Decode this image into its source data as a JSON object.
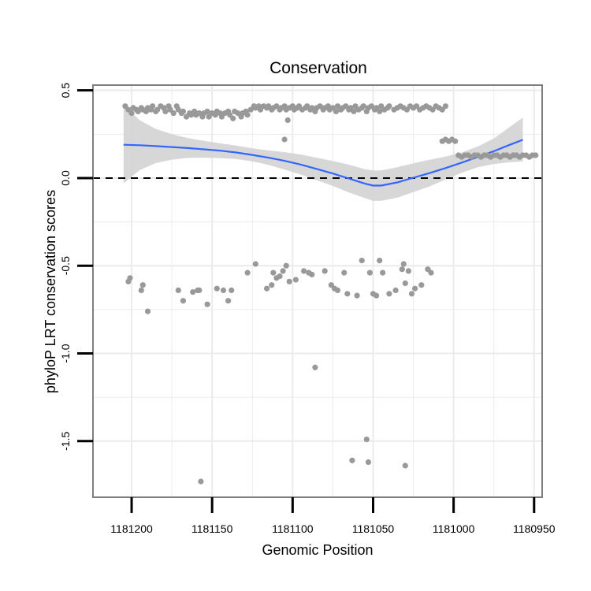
{
  "chart_data": {
    "type": "scatter",
    "title": "Conservation",
    "xlabel": "Genomic Position",
    "ylabel": "phyloP LRT conservation scores",
    "x_reversed": true,
    "xlim": [
      1181224,
      1180945
    ],
    "ylim": [
      -1.82,
      0.53
    ],
    "xticks": [
      1181200,
      1181150,
      1181100,
      1181050,
      1181000,
      1180950
    ],
    "xtick_labels": [
      "1181200",
      "1181150",
      "1181100",
      "1181050",
      "1181000",
      "1180950"
    ],
    "yticks": [
      0.5,
      0.0,
      -0.5,
      -1.0,
      -1.5
    ],
    "ytick_labels": [
      "0.5",
      "0.0",
      "-0.5",
      "-1.0",
      "-1.5"
    ],
    "reference_line": {
      "y": 0.0,
      "style": "dashed"
    },
    "colors": {
      "points": "#999999",
      "smooth": "#3366ff",
      "band": "#d3d3d3",
      "grid": "#ebebeb",
      "frame": "#7f7f7f",
      "refline": "#000000"
    },
    "series": [
      {
        "name": "upper",
        "points": [
          [
            1181204,
            0.41
          ],
          [
            1181202,
            0.39
          ],
          [
            1181200,
            0.37
          ],
          [
            1181199,
            0.4
          ],
          [
            1181197,
            0.39
          ],
          [
            1181196,
            0.38
          ],
          [
            1181194,
            0.4
          ],
          [
            1181193,
            0.39
          ],
          [
            1181191,
            0.38
          ],
          [
            1181190,
            0.4
          ],
          [
            1181188,
            0.39
          ],
          [
            1181187,
            0.41
          ],
          [
            1181185,
            0.38
          ],
          [
            1181184,
            0.39
          ],
          [
            1181182,
            0.41
          ],
          [
            1181180,
            0.4
          ],
          [
            1181179,
            0.38
          ],
          [
            1181177,
            0.41
          ],
          [
            1181176,
            0.39
          ],
          [
            1181174,
            0.37
          ],
          [
            1181172,
            0.41
          ],
          [
            1181171,
            0.39
          ],
          [
            1181169,
            0.37
          ],
          [
            1181168,
            0.38
          ],
          [
            1181166,
            0.35
          ],
          [
            1181164,
            0.37
          ],
          [
            1181163,
            0.36
          ],
          [
            1181161,
            0.38
          ],
          [
            1181160,
            0.36
          ],
          [
            1181158,
            0.37
          ],
          [
            1181156,
            0.35
          ],
          [
            1181155,
            0.37
          ],
          [
            1181153,
            0.38
          ],
          [
            1181152,
            0.35
          ],
          [
            1181150,
            0.37
          ],
          [
            1181148,
            0.36
          ],
          [
            1181147,
            0.38
          ],
          [
            1181145,
            0.37
          ],
          [
            1181144,
            0.35
          ],
          [
            1181142,
            0.37
          ],
          [
            1181140,
            0.38
          ],
          [
            1181139,
            0.36
          ],
          [
            1181137,
            0.34
          ],
          [
            1181136,
            0.38
          ],
          [
            1181134,
            0.37
          ],
          [
            1181132,
            0.35
          ],
          [
            1181131,
            0.37
          ],
          [
            1181129,
            0.38
          ],
          [
            1181128,
            0.36
          ],
          [
            1181126,
            0.39
          ],
          [
            1181124,
            0.41
          ],
          [
            1181123,
            0.4
          ],
          [
            1181121,
            0.41
          ],
          [
            1181120,
            0.39
          ],
          [
            1181118,
            0.41
          ],
          [
            1181116,
            0.4
          ],
          [
            1181115,
            0.41
          ],
          [
            1181113,
            0.39
          ],
          [
            1181112,
            0.4
          ],
          [
            1181110,
            0.41
          ],
          [
            1181108,
            0.39
          ],
          [
            1181107,
            0.4
          ],
          [
            1181105,
            0.41
          ],
          [
            1181104,
            0.39
          ],
          [
            1181102,
            0.4
          ],
          [
            1181100,
            0.41
          ],
          [
            1181099,
            0.39
          ],
          [
            1181097,
            0.4
          ],
          [
            1181096,
            0.41
          ],
          [
            1181094,
            0.39
          ],
          [
            1181092,
            0.4
          ],
          [
            1181091,
            0.41
          ],
          [
            1181089,
            0.39
          ],
          [
            1181088,
            0.4
          ],
          [
            1181086,
            0.38
          ],
          [
            1181085,
            0.4
          ],
          [
            1181083,
            0.41
          ],
          [
            1181081,
            0.39
          ],
          [
            1181080,
            0.4
          ],
          [
            1181078,
            0.41
          ],
          [
            1181077,
            0.39
          ],
          [
            1181075,
            0.4
          ],
          [
            1181073,
            0.38
          ],
          [
            1181072,
            0.41
          ],
          [
            1181070,
            0.39
          ],
          [
            1181069,
            0.4
          ],
          [
            1181067,
            0.41
          ],
          [
            1181065,
            0.39
          ],
          [
            1181064,
            0.4
          ],
          [
            1181062,
            0.38
          ],
          [
            1181061,
            0.41
          ],
          [
            1181059,
            0.39
          ],
          [
            1181057,
            0.4
          ],
          [
            1181056,
            0.41
          ],
          [
            1181054,
            0.38
          ],
          [
            1181053,
            0.4
          ],
          [
            1181051,
            0.41
          ],
          [
            1181049,
            0.39
          ],
          [
            1181048,
            0.4
          ],
          [
            1181046,
            0.38
          ],
          [
            1181045,
            0.41
          ],
          [
            1181043,
            0.39
          ],
          [
            1181041,
            0.4
          ],
          [
            1181040,
            0.41
          ],
          [
            1181037,
            0.39
          ],
          [
            1181035,
            0.4
          ],
          [
            1181033,
            0.41
          ],
          [
            1181031,
            0.4
          ],
          [
            1181029,
            0.39
          ],
          [
            1181027,
            0.41
          ],
          [
            1181025,
            0.4
          ],
          [
            1181023,
            0.41
          ],
          [
            1181021,
            0.39
          ],
          [
            1181019,
            0.4
          ],
          [
            1181017,
            0.41
          ],
          [
            1181015,
            0.4
          ],
          [
            1181013,
            0.39
          ],
          [
            1181011,
            0.41
          ],
          [
            1181009,
            0.4
          ],
          [
            1181007,
            0.39
          ],
          [
            1181005,
            0.41
          ],
          [
            1181103,
            0.33
          ],
          [
            1181105,
            0.22
          ],
          [
            1181007,
            0.21
          ],
          [
            1181005,
            0.22
          ],
          [
            1181003,
            0.21
          ],
          [
            1181001,
            0.22
          ],
          [
            1180999,
            0.21
          ],
          [
            1180997,
            0.13
          ],
          [
            1180995,
            0.12
          ],
          [
            1180993,
            0.13
          ],
          [
            1180991,
            0.13
          ],
          [
            1180989,
            0.12
          ],
          [
            1180987,
            0.13
          ],
          [
            1180985,
            0.13
          ],
          [
            1180983,
            0.12
          ],
          [
            1180981,
            0.13
          ],
          [
            1180979,
            0.13
          ],
          [
            1180977,
            0.12
          ],
          [
            1180975,
            0.13
          ],
          [
            1180973,
            0.13
          ],
          [
            1180971,
            0.12
          ],
          [
            1180969,
            0.13
          ],
          [
            1180967,
            0.13
          ],
          [
            1180965,
            0.12
          ],
          [
            1180963,
            0.13
          ],
          [
            1180961,
            0.13
          ],
          [
            1180959,
            0.12
          ],
          [
            1180957,
            0.13
          ],
          [
            1180955,
            0.13
          ],
          [
            1180953,
            0.12
          ],
          [
            1180951,
            0.13
          ],
          [
            1180949,
            0.13
          ]
        ]
      },
      {
        "name": "lower",
        "points": [
          [
            1181202,
            -0.59
          ],
          [
            1181201,
            -0.57
          ],
          [
            1181194,
            -0.64
          ],
          [
            1181193,
            -0.61
          ],
          [
            1181190,
            -0.76
          ],
          [
            1181171,
            -0.64
          ],
          [
            1181168,
            -0.7
          ],
          [
            1181162,
            -0.65
          ],
          [
            1181159,
            -0.64
          ],
          [
            1181158,
            -0.64
          ],
          [
            1181153,
            -0.72
          ],
          [
            1181147,
            -0.63
          ],
          [
            1181143,
            -0.64
          ],
          [
            1181140,
            -0.7
          ],
          [
            1181138,
            -0.64
          ],
          [
            1181128,
            -0.54
          ],
          [
            1181123,
            -0.49
          ],
          [
            1181116,
            -0.63
          ],
          [
            1181113,
            -0.61
          ],
          [
            1181112,
            -0.54
          ],
          [
            1181110,
            -0.57
          ],
          [
            1181108,
            -0.56
          ],
          [
            1181106,
            -0.53
          ],
          [
            1181104,
            -0.5
          ],
          [
            1181102,
            -0.59
          ],
          [
            1181098,
            -0.58
          ],
          [
            1181093,
            -0.53
          ],
          [
            1181090,
            -0.54
          ],
          [
            1181088,
            -0.55
          ],
          [
            1181086,
            -1.08
          ],
          [
            1181080,
            -0.53
          ],
          [
            1181076,
            -0.61
          ],
          [
            1181074,
            -0.63
          ],
          [
            1181072,
            -0.64
          ],
          [
            1181068,
            -0.54
          ],
          [
            1181066,
            -0.66
          ],
          [
            1181060,
            -0.67
          ],
          [
            1181057,
            -0.47
          ],
          [
            1181052,
            -0.54
          ],
          [
            1181050,
            -0.66
          ],
          [
            1181048,
            -0.67
          ],
          [
            1181046,
            -0.47
          ],
          [
            1181044,
            -0.54
          ],
          [
            1181040,
            -0.66
          ],
          [
            1181036,
            -0.64
          ],
          [
            1181032,
            -0.52
          ],
          [
            1181031,
            -0.49
          ],
          [
            1181030,
            -0.6
          ],
          [
            1181028,
            -0.53
          ],
          [
            1181026,
            -0.66
          ],
          [
            1181024,
            -0.63
          ],
          [
            1181020,
            -0.61
          ],
          [
            1181016,
            -0.52
          ],
          [
            1181014,
            -0.54
          ],
          [
            1181063,
            -1.61
          ],
          [
            1181054,
            -1.49
          ],
          [
            1181053,
            -1.62
          ],
          [
            1181030,
            -1.64
          ],
          [
            1181157,
            -1.73
          ]
        ]
      }
    ],
    "smooth": {
      "x": [
        1181205,
        1181195,
        1181185,
        1181175,
        1181165,
        1181155,
        1181145,
        1181135,
        1181125,
        1181115,
        1181105,
        1181095,
        1181085,
        1181075,
        1181065,
        1181055,
        1181050,
        1181045,
        1181035,
        1181025,
        1181015,
        1181005,
        1180995,
        1180985,
        1180975,
        1180965,
        1180957
      ],
      "y": [
        0.19,
        0.187,
        0.182,
        0.177,
        0.171,
        0.164,
        0.156,
        0.146,
        0.132,
        0.116,
        0.098,
        0.077,
        0.052,
        0.026,
        -0.003,
        -0.032,
        -0.043,
        -0.043,
        -0.025,
        0.002,
        0.028,
        0.057,
        0.088,
        0.12,
        0.153,
        0.19,
        0.218
      ],
      "lower": [
        -0.03,
        0.045,
        0.085,
        0.105,
        0.115,
        0.116,
        0.114,
        0.108,
        0.095,
        0.075,
        0.048,
        0.02,
        -0.012,
        -0.045,
        -0.082,
        -0.115,
        -0.13,
        -0.13,
        -0.112,
        -0.08,
        -0.048,
        -0.008,
        0.03,
        0.062,
        0.08,
        0.09,
        0.095
      ],
      "upper": [
        0.42,
        0.33,
        0.28,
        0.25,
        0.228,
        0.212,
        0.198,
        0.185,
        0.17,
        0.157,
        0.148,
        0.134,
        0.116,
        0.097,
        0.076,
        0.05,
        0.044,
        0.044,
        0.062,
        0.084,
        0.104,
        0.122,
        0.146,
        0.18,
        0.226,
        0.292,
        0.345
      ]
    }
  }
}
